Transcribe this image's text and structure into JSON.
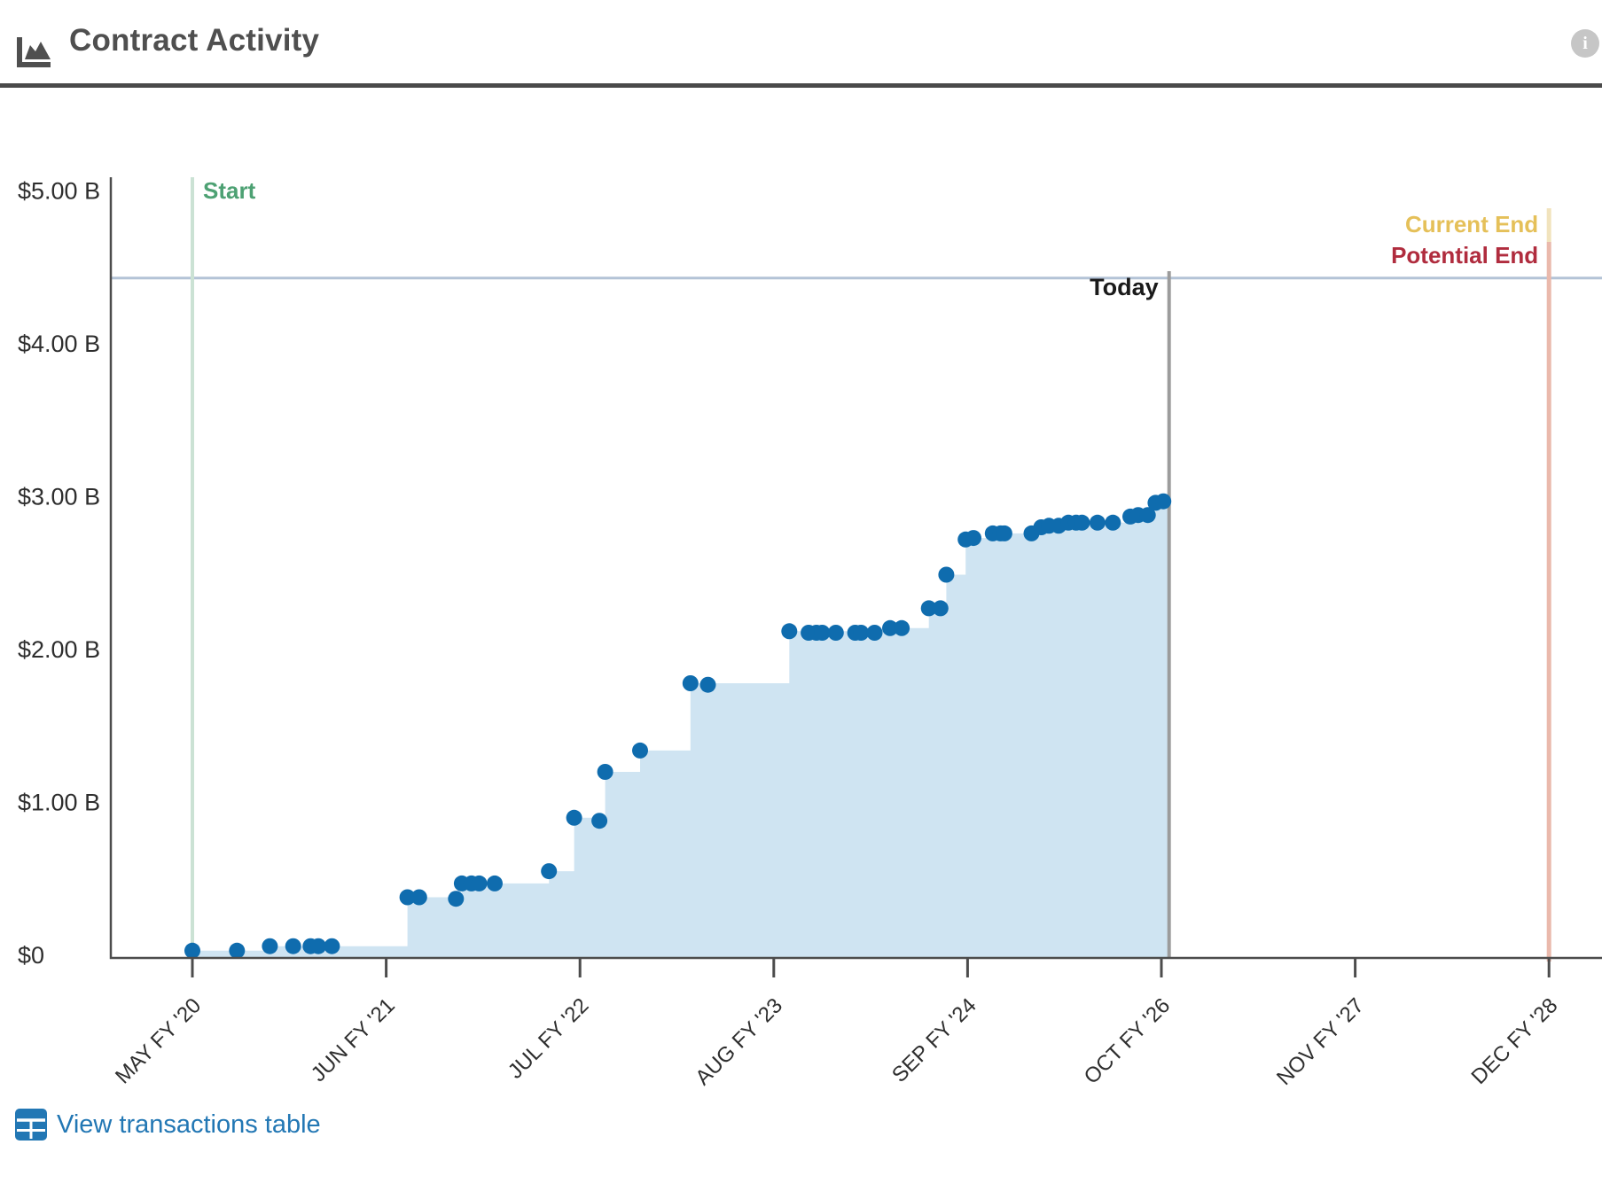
{
  "header": {
    "title": "Contract Activity",
    "icons": {
      "chart_icon": "area-chart-icon",
      "info_icon": "info-icon",
      "info_glyph": "i"
    }
  },
  "footer": {
    "view_table_label": "View transactions table",
    "table_icon": "table-icon"
  },
  "colors": {
    "title": "#4f4f4f",
    "axis": "#4c4c4c",
    "tick_label": "#2e2e2e",
    "area_fill": "#cfe4f2",
    "point": "#0f6cae",
    "ceiling_line": "#b3c3d6",
    "start_label": "#4da173",
    "start_line": "#cbe2d4",
    "today_label": "#1a1a1a",
    "today_line": "#9c9c9c",
    "current_end_label": "#e5c059",
    "current_end_line": "#f1e3bd",
    "potential_end_label": "#b02c3e",
    "potential_end_line": "#eab9ac",
    "link": "#2277b4"
  },
  "chart_data": {
    "type": "area",
    "subtype": "cumulative-step-area-with-scatter",
    "title": "Contract Activity",
    "units": "USD billions",
    "ylabel": "",
    "xlabel": "",
    "ylim": [
      0,
      5
    ],
    "grid": false,
    "y_ticks": [
      {
        "label": "$0",
        "v": 0
      },
      {
        "label": "$1.00 B",
        "v": 1
      },
      {
        "label": "$2.00 B",
        "v": 2
      },
      {
        "label": "$3.00 B",
        "v": 3
      },
      {
        "label": "$4.00 B",
        "v": 4
      },
      {
        "label": "$5.00 B",
        "v": 5
      }
    ],
    "x_ticks": [
      {
        "label": "MAY FY '20",
        "u": 0
      },
      {
        "label": "JUN FY '21",
        "u": 1
      },
      {
        "label": "JUL FY '22",
        "u": 2
      },
      {
        "label": "AUG FY '23",
        "u": 3
      },
      {
        "label": "SEP FY '24",
        "u": 4
      },
      {
        "label": "OCT FY '26",
        "u": 5
      },
      {
        "label": "NOV FY '27",
        "u": 6
      },
      {
        "label": "DEC FY '28",
        "u": 7
      }
    ],
    "x_unit_note": "u = horizontal position measured in x-axis tick intervals from MAY FY '20",
    "markers": {
      "start": {
        "label": "Start",
        "u": 0.0
      },
      "today": {
        "label": "Today",
        "u": 5.04
      },
      "current_end": {
        "label": "Current End",
        "u": 7.0
      },
      "potential_end": {
        "label": "Potential End",
        "u": 7.0
      },
      "ceiling_value_b": 4.43
    },
    "points_format": [
      "u_ticks",
      "usd_billions"
    ],
    "points": [
      [
        0.0,
        0.03
      ],
      [
        0.23,
        0.03
      ],
      [
        0.4,
        0.06
      ],
      [
        0.52,
        0.06
      ],
      [
        0.61,
        0.06
      ],
      [
        0.65,
        0.06
      ],
      [
        0.72,
        0.06
      ],
      [
        1.11,
        0.38
      ],
      [
        1.17,
        0.38
      ],
      [
        1.36,
        0.37
      ],
      [
        1.39,
        0.47
      ],
      [
        1.44,
        0.47
      ],
      [
        1.48,
        0.47
      ],
      [
        1.56,
        0.47
      ],
      [
        1.84,
        0.55
      ],
      [
        1.97,
        0.9
      ],
      [
        2.1,
        0.88
      ],
      [
        2.13,
        1.2
      ],
      [
        2.31,
        1.34
      ],
      [
        2.57,
        1.78
      ],
      [
        2.66,
        1.77
      ],
      [
        3.08,
        2.12
      ],
      [
        3.18,
        2.11
      ],
      [
        3.22,
        2.11
      ],
      [
        3.25,
        2.11
      ],
      [
        3.32,
        2.11
      ],
      [
        3.42,
        2.11
      ],
      [
        3.45,
        2.11
      ],
      [
        3.52,
        2.11
      ],
      [
        3.6,
        2.14
      ],
      [
        3.66,
        2.14
      ],
      [
        3.8,
        2.27
      ],
      [
        3.86,
        2.27
      ],
      [
        3.89,
        2.49
      ],
      [
        3.99,
        2.72
      ],
      [
        4.03,
        2.73
      ],
      [
        4.13,
        2.76
      ],
      [
        4.17,
        2.76
      ],
      [
        4.19,
        2.76
      ],
      [
        4.33,
        2.76
      ],
      [
        4.38,
        2.8
      ],
      [
        4.42,
        2.81
      ],
      [
        4.47,
        2.81
      ],
      [
        4.52,
        2.83
      ],
      [
        4.56,
        2.83
      ],
      [
        4.59,
        2.83
      ],
      [
        4.67,
        2.83
      ],
      [
        4.75,
        2.83
      ],
      [
        4.84,
        2.87
      ],
      [
        4.88,
        2.88
      ],
      [
        4.93,
        2.88
      ],
      [
        4.97,
        2.96
      ],
      [
        5.01,
        2.97
      ]
    ],
    "legend_position": "none",
    "area_ends_at": "today"
  }
}
